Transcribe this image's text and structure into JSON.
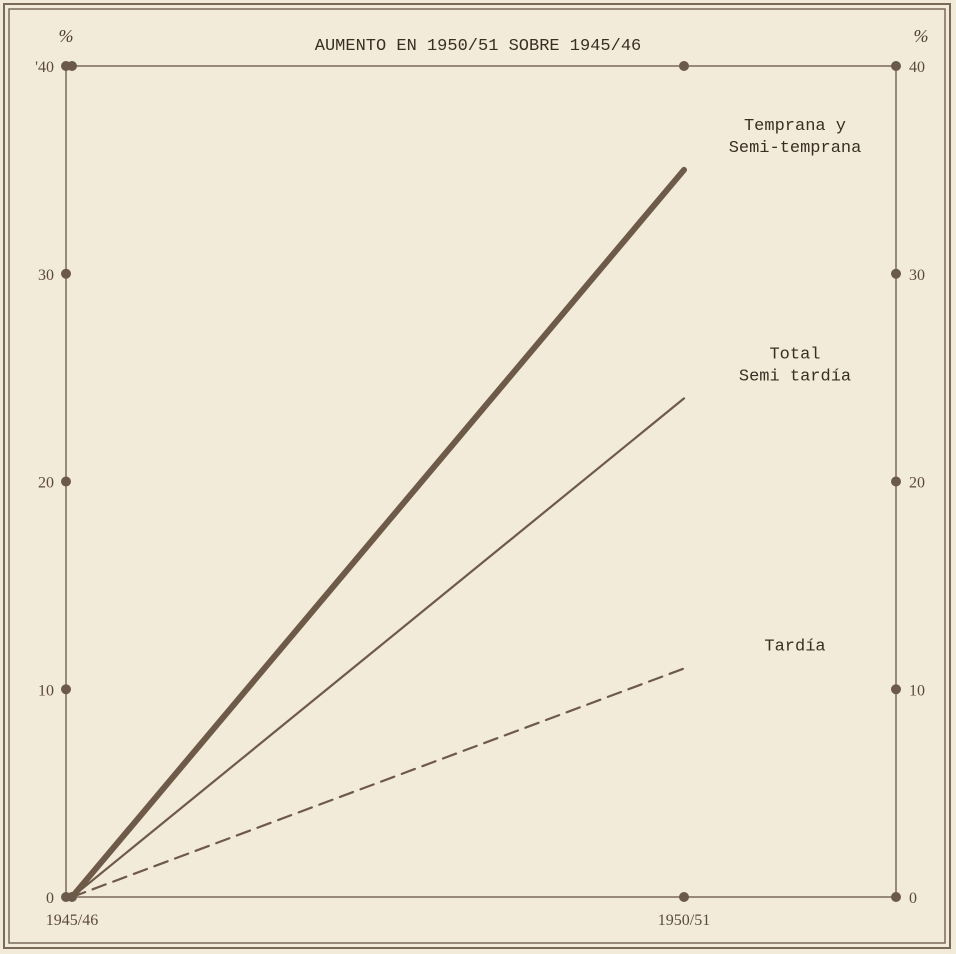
{
  "chart_data": {
    "type": "line",
    "title": "AUMENTO EN 1950/51 SOBRE 1945/46",
    "unit_left": "%",
    "unit_right": "%",
    "x": [
      "1945/46",
      "1950/51"
    ],
    "ylim": [
      0,
      40
    ],
    "yticks_left": [
      "0",
      "10",
      "20",
      "30",
      "'40"
    ],
    "yticks_right": [
      "0",
      "10",
      "20",
      "30",
      "40"
    ],
    "series": [
      {
        "name": "Temprana y Semi-temprana",
        "label_lines": [
          "Temprana y",
          "Semi-temprana"
        ],
        "values": [
          0,
          35
        ],
        "style": "thick"
      },
      {
        "name": "Total Semi tardía",
        "label_lines": [
          "Total",
          "Semi tardía"
        ],
        "values": [
          0,
          24
        ],
        "style": "thin"
      },
      {
        "name": "Tardía",
        "label_lines": [
          "Tardía"
        ],
        "values": [
          0,
          11
        ],
        "style": "dashed"
      }
    ],
    "grid": false,
    "colors": {
      "line": "#6e5a48",
      "frame": "#7a6a58",
      "dot": "#6b5a4a",
      "background": "#f3ebd9"
    }
  }
}
